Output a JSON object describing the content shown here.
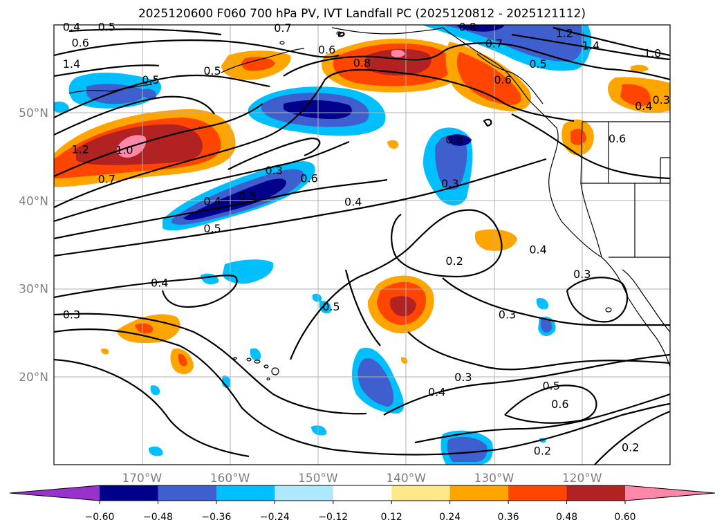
{
  "title": "2025120600 F060 700 hPa PV, IVT Landfall PC (2025120812 - 2025121112)",
  "map": {
    "lon_range": [
      -180,
      -110
    ],
    "lat_range": [
      10,
      60
    ],
    "lon_ticks": [
      {
        "value": -170,
        "label": "170°W"
      },
      {
        "value": -160,
        "label": "160°W"
      },
      {
        "value": -150,
        "label": "150°W"
      },
      {
        "value": -140,
        "label": "140°W"
      },
      {
        "value": -130,
        "label": "130°W"
      },
      {
        "value": -120,
        "label": "120°W"
      }
    ],
    "lat_ticks": [
      {
        "value": 20,
        "label": "20°N"
      },
      {
        "value": 30,
        "label": "30°N"
      },
      {
        "value": 40,
        "label": "40°N"
      },
      {
        "value": 50,
        "label": "50°N"
      }
    ],
    "gridlines": true,
    "contour_labels": [
      {
        "text": "0.4",
        "lon": -178,
        "lat": 59.8
      },
      {
        "text": "0.5",
        "lon": -174,
        "lat": 59.8
      },
      {
        "text": "0.7",
        "lon": -154,
        "lat": 59.7
      },
      {
        "text": "0.8",
        "lon": -133,
        "lat": 59.8
      },
      {
        "text": "1.2",
        "lon": -122,
        "lat": 59.1
      },
      {
        "text": "1.4",
        "lon": -119,
        "lat": 57.7
      },
      {
        "text": "1.0",
        "lon": -112,
        "lat": 56.8
      },
      {
        "text": "0.6",
        "lon": -177,
        "lat": 58.0
      },
      {
        "text": "0.6",
        "lon": -149,
        "lat": 57.2
      },
      {
        "text": "0.8",
        "lon": -145,
        "lat": 55.7
      },
      {
        "text": "0.7",
        "lon": -130,
        "lat": 57.9
      },
      {
        "text": "0.5",
        "lon": -125,
        "lat": 55.6
      },
      {
        "text": "0.3",
        "lon": -111,
        "lat": 51.5
      },
      {
        "text": "0.4",
        "lon": -113,
        "lat": 50.8
      },
      {
        "text": "0.5",
        "lon": -169,
        "lat": 53.8
      },
      {
        "text": "1.4",
        "lon": -178,
        "lat": 55.6
      },
      {
        "text": "0.5",
        "lon": -162,
        "lat": 54.8
      },
      {
        "text": "0.6",
        "lon": -129,
        "lat": 53.8
      },
      {
        "text": "1.2",
        "lon": -177,
        "lat": 45.9
      },
      {
        "text": "1.0",
        "lon": -172,
        "lat": 45.8
      },
      {
        "text": "0.7",
        "lon": -174,
        "lat": 42.5
      },
      {
        "text": "0.3",
        "lon": -155,
        "lat": 43.5
      },
      {
        "text": "0.6",
        "lon": -151,
        "lat": 42.6
      },
      {
        "text": "0.8",
        "lon": -134.5,
        "lat": 47.0
      },
      {
        "text": "0.3",
        "lon": -135,
        "lat": 42.0
      },
      {
        "text": "0.6",
        "lon": -116,
        "lat": 47.1
      },
      {
        "text": "0.5",
        "lon": -158,
        "lat": 40.6
      },
      {
        "text": "0.4",
        "lon": -162,
        "lat": 40.0
      },
      {
        "text": "0.4",
        "lon": -146,
        "lat": 39.9
      },
      {
        "text": "0.5",
        "lon": -162,
        "lat": 36.9
      },
      {
        "text": "0.2",
        "lon": -134.5,
        "lat": 33.2
      },
      {
        "text": "0.4",
        "lon": -125,
        "lat": 34.5
      },
      {
        "text": "0.3",
        "lon": -120,
        "lat": 31.7
      },
      {
        "text": "0.4",
        "lon": -168,
        "lat": 30.7
      },
      {
        "text": "0.3",
        "lon": -178,
        "lat": 27.1
      },
      {
        "text": "0.5",
        "lon": -148.5,
        "lat": 28.0
      },
      {
        "text": "0.3",
        "lon": -128.5,
        "lat": 27.1
      },
      {
        "text": "0.3",
        "lon": -133.5,
        "lat": 20.0
      },
      {
        "text": "0.4",
        "lon": -136.5,
        "lat": 18.3
      },
      {
        "text": "0.5",
        "lon": -123.5,
        "lat": 19.0
      },
      {
        "text": "0.6",
        "lon": -122.5,
        "lat": 16.9
      },
      {
        "text": "0.2",
        "lon": -124.5,
        "lat": 11.6
      },
      {
        "text": "0.2",
        "lon": -114.5,
        "lat": 12.0
      }
    ]
  },
  "colorbar": {
    "ticks": [
      "−0.60",
      "−0.48",
      "−0.36",
      "−0.24",
      "−0.12",
      "0.12",
      "0.24",
      "0.36",
      "0.48",
      "0.60"
    ],
    "under_color": "#9932cc",
    "over_color": "#ff88aa",
    "colors": [
      "#00008b",
      "#3f5fcf",
      "#00bfff",
      "#ade8ff",
      "#ffffff",
      "#ffe88a",
      "#ffa500",
      "#ff4500",
      "#b22222"
    ]
  }
}
